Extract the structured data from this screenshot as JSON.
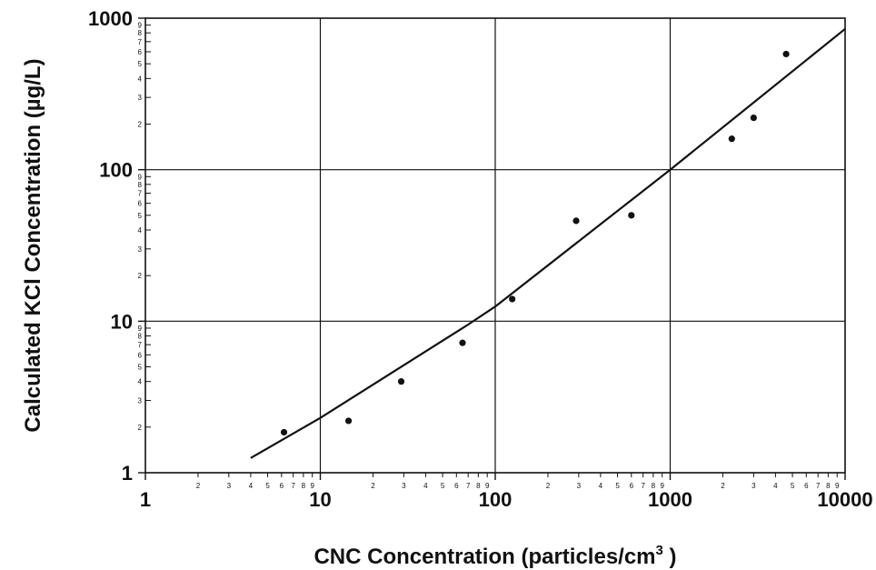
{
  "chart_data": {
    "type": "scatter",
    "title": "",
    "xlabel": "CNC Concentration (particles/cm",
    "xlabel_superscript": "3",
    "xlabel_suffix": " )",
    "ylabel": "Calculated KCl Concentration (µg/L)",
    "xscale": "log",
    "yscale": "log",
    "xlim": [
      1,
      10000
    ],
    "ylim": [
      1,
      1000
    ],
    "grid": "major decades",
    "x_major_ticks": [
      1,
      10,
      100,
      1000,
      10000
    ],
    "x_major_tick_labels": [
      "1",
      "10",
      "100",
      "1000",
      "10000"
    ],
    "y_major_ticks": [
      1,
      10,
      100,
      1000
    ],
    "y_major_tick_labels": [
      "1",
      "10",
      "100",
      "1000"
    ],
    "minor_tick_labels": [
      "2",
      "3",
      "4",
      "5",
      "6",
      "7",
      "8",
      "9"
    ],
    "series": [
      {
        "values_x": [
          6.2,
          14.5,
          29,
          65,
          125,
          290,
          600,
          2250,
          3000,
          4600
        ],
        "values_y": [
          1.85,
          2.2,
          4.0,
          7.2,
          14,
          46,
          50,
          160,
          220,
          580
        ]
      },
      {
        "kind": "line",
        "values_x": [
          4,
          10,
          70,
          100,
          1000,
          10000
        ],
        "values_y": [
          1.25,
          2.3,
          9.5,
          12.5,
          100,
          850
        ]
      }
    ]
  }
}
